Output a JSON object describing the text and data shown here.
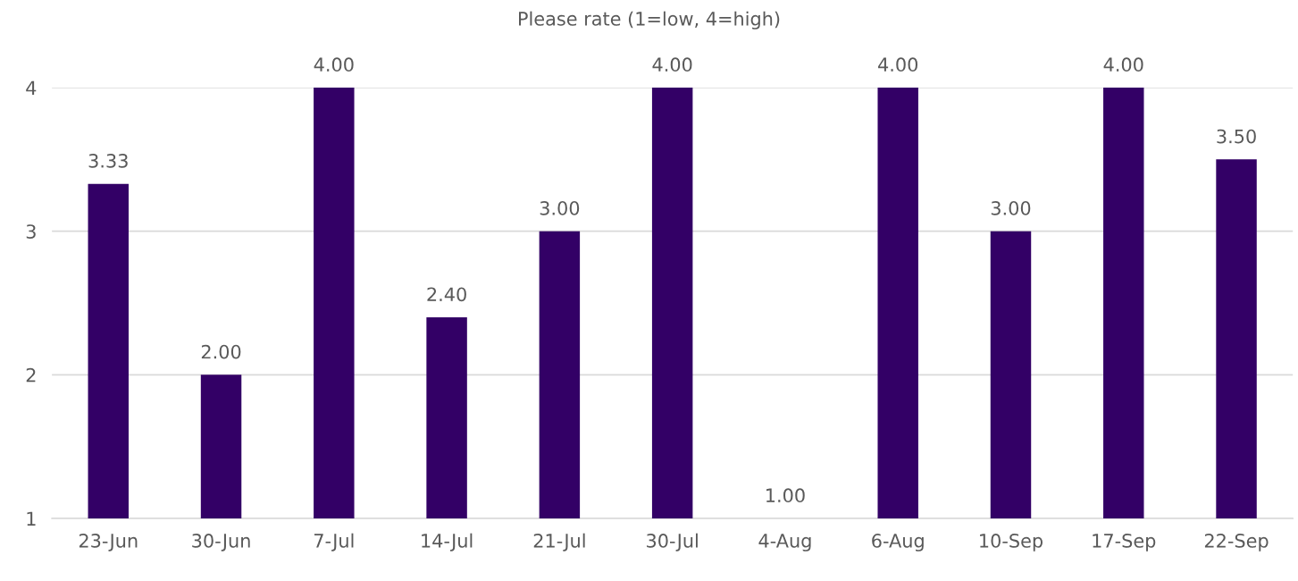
{
  "chart_data": {
    "type": "bar",
    "title": "Please rate (1=low, 4=high)",
    "categories": [
      "23-Jun",
      "30-Jun",
      "7-Jul",
      "14-Jul",
      "21-Jul",
      "30-Jul",
      "4-Aug",
      "6-Aug",
      "10-Sep",
      "17-Sep",
      "22-Sep"
    ],
    "values": [
      3.33,
      2.0,
      4.0,
      2.4,
      3.0,
      4.0,
      1.0,
      4.0,
      3.0,
      4.0,
      3.5
    ],
    "value_labels": [
      "3.33",
      "2.00",
      "4.00",
      "2.40",
      "3.00",
      "4.00",
      "1.00",
      "4.00",
      "3.00",
      "4.00",
      "3.50"
    ],
    "color": "#330066",
    "ylim": [
      1,
      4
    ],
    "yticks": [
      1,
      2,
      3,
      4
    ],
    "grid": "y",
    "legend": false
  }
}
